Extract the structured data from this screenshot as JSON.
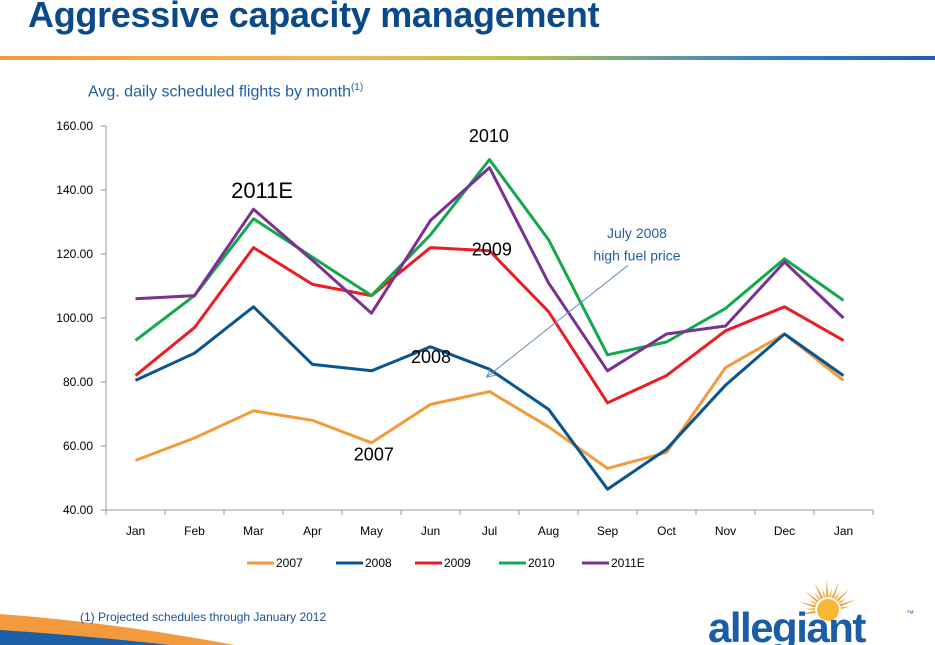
{
  "page": {
    "title": "Aggressive capacity management",
    "subtitle": "Avg. daily scheduled flights by month",
    "subtitle_note": "(1)",
    "footnote": "(1)  Projected schedules through January 2012",
    "logo_text": "allegiant",
    "logo_tm": "™"
  },
  "chart_data": {
    "type": "line",
    "categories": [
      "Jan",
      "Feb",
      "Mar",
      "Apr",
      "May",
      "Jun",
      "Jul",
      "Aug",
      "Sep",
      "Oct",
      "Nov",
      "Dec",
      "Jan"
    ],
    "ylim": [
      40,
      160
    ],
    "yticks": [
      "40.00",
      "60.00",
      "80.00",
      "100.00",
      "120.00",
      "140.00",
      "160.00"
    ],
    "legend_position": "bottom",
    "grid": false,
    "series": [
      {
        "name": "2007",
        "color": "#f39a3c",
        "values": [
          55.5,
          62.5,
          71,
          68,
          61,
          73,
          77,
          66,
          53,
          58,
          84.5,
          95,
          80.5
        ]
      },
      {
        "name": "2008",
        "color": "#0b558f",
        "values": [
          80.5,
          89,
          103.5,
          85.5,
          83.5,
          91,
          84,
          71.5,
          46.5,
          59,
          79,
          95,
          82
        ]
      },
      {
        "name": "2009",
        "color": "#ec1c24",
        "values": [
          82,
          97,
          122,
          110.5,
          107,
          122,
          121,
          102,
          73.5,
          82,
          96,
          103.5,
          93
        ]
      },
      {
        "name": "2010",
        "color": "#13a84a",
        "values": [
          93,
          107,
          131,
          119,
          107,
          126,
          149.5,
          124.5,
          88.5,
          92.5,
          103,
          118.5,
          105.5
        ]
      },
      {
        "name": "2011E",
        "color": "#7a3191",
        "values": [
          106,
          107,
          134,
          118,
          101.5,
          130.5,
          147,
          111,
          83.5,
          95,
          97.5,
          117.5,
          100
        ]
      }
    ],
    "annotations": [
      {
        "id": "lbl-2010",
        "text": "2010",
        "x": 6.15,
        "y": 155,
        "size": 18
      },
      {
        "id": "lbl-2011e",
        "text": "2011E",
        "x": 2.12,
        "y": 137.5,
        "size": 22
      },
      {
        "id": "lbl-2009",
        "text": "2009",
        "x": 6.2,
        "y": 119.5,
        "size": 18
      },
      {
        "id": "lbl-2008",
        "text": "2008",
        "x": 5.17,
        "y": 86,
        "size": 18
      },
      {
        "id": "lbl-2007",
        "text": "2007",
        "x": 4.2,
        "y": 55.5,
        "size": 18
      }
    ],
    "callout": {
      "lines": [
        "July 2008",
        "high fuel price"
      ],
      "text_x": 9.0,
      "text_y1": 125,
      "text_y2": 118,
      "arrow_from": [
        8.85,
        116.5
      ],
      "arrow_to": [
        6.45,
        81.5
      ]
    }
  }
}
